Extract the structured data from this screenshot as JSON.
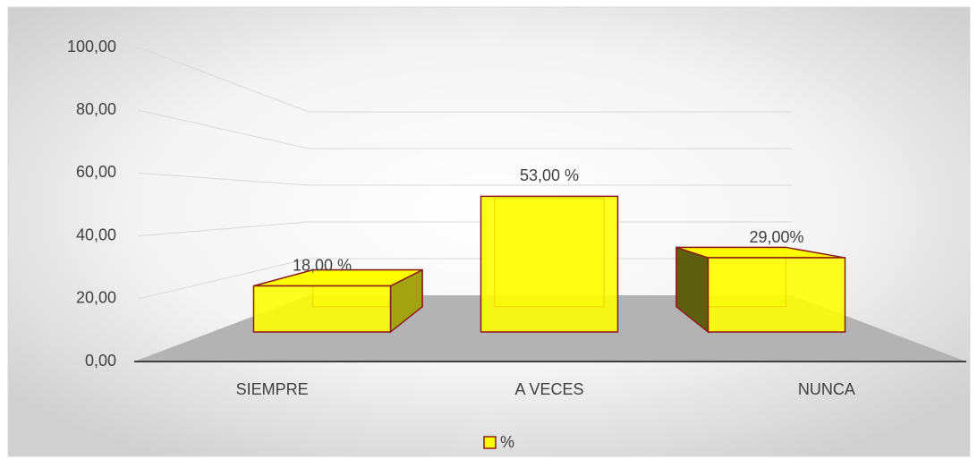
{
  "chart_data": {
    "type": "bar3d",
    "categories": [
      "SIEMPRE",
      "A VECES",
      "NUNCA"
    ],
    "series": [
      {
        "name": "%",
        "color": "#ffff00",
        "edgecolor": "#8b1a1a",
        "values": [
          18,
          53,
          29
        ],
        "value_labels": [
          "18,00 %",
          "53,00  %",
          "29,00%"
        ]
      }
    ],
    "ylim": [
      0,
      100
    ],
    "yticks": [
      {
        "value": 0,
        "label": "0,00"
      },
      {
        "value": 20,
        "label": "20,00"
      },
      {
        "value": 40,
        "label": "40,00"
      },
      {
        "value": 60,
        "label": "60,00"
      },
      {
        "value": 80,
        "label": "80,00"
      },
      {
        "value": 100,
        "label": "100,00"
      }
    ],
    "grid": true,
    "legend": "bottom"
  }
}
